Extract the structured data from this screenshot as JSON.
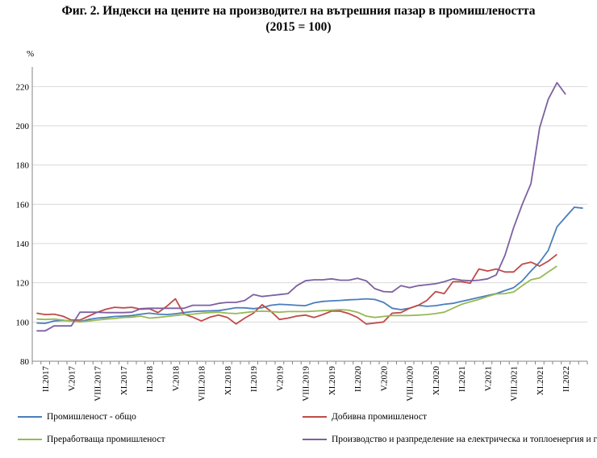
{
  "title_line1": "Фиг. 2. Индекси на цените на производител на вътрешния пазар в промишлеността",
  "title_line2": "(2015 = 100)",
  "chart_data": {
    "type": "line",
    "ylabel": "%",
    "ylim": [
      80,
      230
    ],
    "yticks": [
      80,
      100,
      120,
      140,
      160,
      180,
      200,
      220
    ],
    "xtick_labels": [
      "II.2017",
      "V.2017",
      "VIII.2017",
      "XI.2017",
      "II.2018",
      "V.2018",
      "VIII.2018",
      "XI.2018",
      "II.2019",
      "V.2019",
      "VIII.2019",
      "XI.2019",
      "II.2020",
      "V.2020",
      "VIII.2020",
      "XI.2020",
      "II.2021",
      "V.2021",
      "VIII.2021",
      "XI.2021",
      "II.2022"
    ],
    "grid": "horizontal",
    "legend_position": "bottom",
    "x_start": "I.2017",
    "series": [
      {
        "name": "Промишленост - общо",
        "color": "#4a7ebb",
        "values": [
          99.5,
          99.3,
          100.5,
          100.8,
          100.5,
          100.2,
          101.3,
          102.0,
          102.3,
          102.8,
          103.0,
          103.3,
          104.0,
          104.5,
          104.0,
          103.8,
          104.2,
          104.8,
          105.3,
          105.5,
          105.7,
          105.8,
          106.5,
          107.3,
          107.2,
          106.8,
          107.3,
          108.5,
          109.0,
          108.8,
          108.5,
          108.3,
          109.8,
          110.5,
          110.8,
          111.0,
          111.3,
          111.5,
          111.8,
          111.5,
          110.0,
          107.0,
          106.3,
          107.0,
          108.5,
          108.0,
          108.3,
          109.0,
          109.5,
          110.5,
          111.5,
          112.5,
          113.5,
          114.5,
          116.0,
          117.5,
          121.0,
          126.0,
          130.5,
          136.5,
          148.5,
          153.5,
          158.5,
          158.0
        ]
      },
      {
        "name": "Добивна промишленост",
        "color": "#be4b48",
        "values": [
          104.5,
          103.8,
          104.0,
          103.0,
          101.0,
          101.0,
          103.0,
          105.0,
          106.5,
          107.5,
          107.2,
          107.5,
          106.5,
          106.8,
          104.8,
          108.0,
          111.8,
          104.0,
          102.5,
          100.5,
          102.5,
          103.5,
          102.3,
          99.0,
          102.0,
          104.5,
          108.8,
          105.5,
          101.3,
          102.0,
          103.0,
          103.5,
          102.3,
          103.8,
          105.5,
          105.5,
          104.3,
          102.3,
          99.0,
          99.5,
          100.0,
          104.5,
          104.8,
          107.0,
          108.5,
          111.0,
          115.5,
          114.5,
          120.5,
          120.5,
          119.8,
          127.0,
          126.0,
          127.0,
          125.5,
          125.5,
          129.5,
          130.5,
          128.5,
          131.0,
          134.5
        ]
      },
      {
        "name": "Преработваща промишленост",
        "color": "#98b954",
        "values": [
          101.5,
          101.3,
          101.5,
          101.0,
          100.5,
          100.0,
          100.5,
          101.0,
          101.5,
          101.8,
          102.3,
          102.5,
          103.0,
          102.0,
          102.3,
          102.8,
          103.3,
          103.8,
          104.0,
          104.5,
          104.8,
          105.0,
          104.5,
          104.3,
          104.8,
          105.3,
          105.5,
          105.3,
          105.0,
          105.3,
          105.3,
          105.3,
          105.5,
          105.8,
          106.0,
          106.3,
          106.0,
          105.0,
          103.0,
          102.3,
          102.8,
          103.3,
          103.3,
          103.3,
          103.5,
          103.8,
          104.3,
          105.0,
          107.0,
          109.0,
          110.3,
          111.5,
          113.0,
          114.3,
          114.5,
          115.3,
          118.5,
          121.5,
          122.5,
          125.5,
          128.5
        ]
      },
      {
        "name": "Производство и разпределение на електрическа и топлоенергия и газ",
        "color": "#7d60a0",
        "values": [
          95.5,
          95.5,
          98.0,
          98.0,
          98.0,
          105.0,
          105.0,
          105.0,
          104.8,
          104.8,
          104.8,
          105.0,
          106.8,
          107.0,
          107.0,
          107.0,
          107.0,
          107.0,
          108.5,
          108.5,
          108.5,
          109.5,
          110.0,
          110.0,
          111.0,
          114.0,
          113.0,
          113.5,
          114.0,
          114.5,
          118.5,
          121.0,
          121.5,
          121.5,
          122.0,
          121.3,
          121.3,
          122.3,
          121.0,
          117.0,
          115.5,
          115.3,
          118.5,
          117.5,
          118.5,
          119.0,
          119.5,
          120.5,
          122.0,
          121.3,
          121.0,
          121.3,
          122.0,
          124.0,
          134.0,
          148.0,
          160.0,
          170.5,
          199.0,
          213.5,
          222.0,
          216.0
        ]
      }
    ]
  }
}
